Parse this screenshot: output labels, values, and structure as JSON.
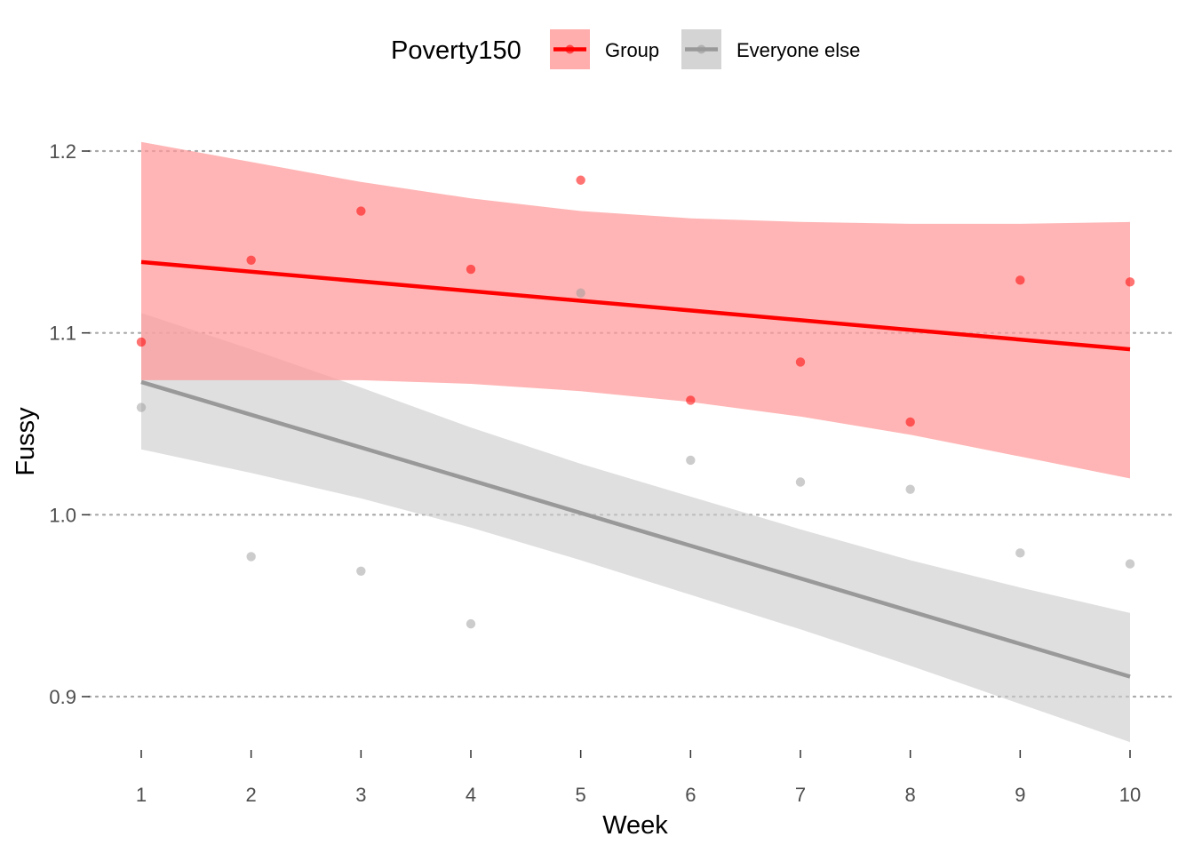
{
  "chart_data": {
    "type": "scatter",
    "xlabel": "Week",
    "ylabel": "Fussy",
    "xlim": [
      1,
      10
    ],
    "ylim": [
      0.9,
      1.2
    ],
    "x_ticks": [
      1,
      2,
      3,
      4,
      5,
      6,
      7,
      8,
      9,
      10
    ],
    "y_ticks": [
      0.9,
      1.0,
      1.1,
      1.2
    ],
    "y_tick_labels": [
      "0.9",
      "1.0",
      "1.1",
      "1.2"
    ],
    "grid": "horizontal dotted major lines",
    "legend_title": "Poverty150",
    "legend_position": "top",
    "series": [
      {
        "name": "Group",
        "color": "#ff0000",
        "band_color": "#ff9999",
        "x": [
          1,
          2,
          3,
          4,
          5,
          6,
          7,
          8,
          9,
          10
        ],
        "y": [
          1.095,
          1.14,
          1.167,
          1.135,
          1.184,
          1.063,
          1.084,
          1.051,
          1.129,
          1.128
        ],
        "fit": {
          "start": 1.139,
          "end": 1.091
        },
        "ci_upper": [
          1.205,
          1.194,
          1.183,
          1.174,
          1.167,
          1.163,
          1.161,
          1.16,
          1.16,
          1.161
        ],
        "ci_lower": [
          1.074,
          1.074,
          1.074,
          1.072,
          1.068,
          1.062,
          1.054,
          1.044,
          1.032,
          1.02
        ]
      },
      {
        "name": "Everyone else",
        "color": "#999999",
        "band_color": "#cccccc",
        "x": [
          1,
          2,
          3,
          4,
          5,
          6,
          7,
          8,
          9,
          10
        ],
        "y": [
          1.059,
          0.977,
          0.969,
          0.94,
          1.122,
          1.03,
          1.018,
          1.014,
          0.979,
          0.973
        ],
        "fit": {
          "start": 1.073,
          "end": 0.911
        },
        "ci_upper": [
          1.111,
          1.091,
          1.07,
          1.048,
          1.028,
          1.01,
          0.992,
          0.975,
          0.96,
          0.946
        ],
        "ci_lower": [
          1.036,
          1.023,
          1.009,
          0.993,
          0.975,
          0.956,
          0.937,
          0.917,
          0.896,
          0.875
        ]
      }
    ]
  }
}
